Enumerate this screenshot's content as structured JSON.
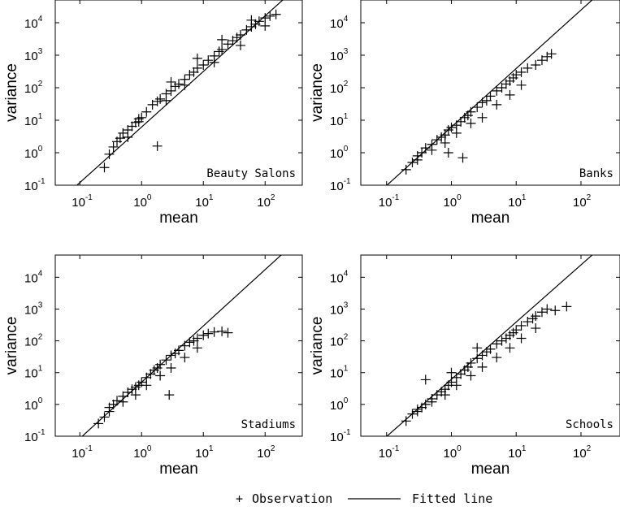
{
  "legend": {
    "observation_symbol": "+",
    "observation_label": "Observation",
    "fitted_label": "Fitted line"
  },
  "chart_data": [
    {
      "type": "scatter",
      "title": "Beauty Salons",
      "xlabel": "mean",
      "ylabel": "variance",
      "xscale": "log",
      "yscale": "log",
      "xlim": [
        0.04,
        400
      ],
      "ylim": [
        0.1,
        50000
      ],
      "xticks": [
        "10^-1",
        "10^0",
        "10^1",
        "10^2"
      ],
      "yticks": [
        "10^-1",
        "10^0",
        "10^1",
        "10^2",
        "10^3",
        "10^4"
      ],
      "title_position": "bottom-right",
      "fit": {
        "slope": 1.71,
        "intercept": 0.79
      },
      "series": [
        {
          "name": "Observation",
          "marker": "+",
          "x": [
            0.25,
            0.3,
            0.35,
            0.4,
            0.45,
            0.5,
            0.6,
            0.7,
            0.8,
            0.9,
            1.0,
            1.2,
            1.5,
            1.8,
            2.0,
            2.5,
            3.0,
            3.5,
            4.0,
            5.0,
            6.0,
            7.0,
            8.0,
            10.0,
            12.0,
            15.0,
            18.0,
            20.0,
            25.0,
            30.0,
            35.0,
            40.0,
            50.0,
            60.0,
            70.0,
            80.0,
            100.0,
            120.0,
            150.0,
            1.8,
            0.6,
            3.0,
            8.0,
            20.0,
            60.0,
            0.9,
            2.5,
            5.0,
            15.0,
            40.0,
            100.0
          ],
          "y": [
            0.35,
            0.9,
            1.5,
            2.2,
            2.8,
            4.0,
            5.0,
            6.5,
            8.5,
            11.0,
            12.0,
            18.0,
            30.0,
            38.0,
            45.0,
            65.0,
            80.0,
            110.0,
            130.0,
            180.0,
            250.0,
            300.0,
            400.0,
            500.0,
            700.0,
            950.0,
            1300.0,
            1500.0,
            2200.0,
            2800.0,
            3500.0,
            4200.0,
            6000.0,
            7500.0,
            9000.0,
            11000.0,
            14000.0,
            16000.0,
            18000.0,
            1.6,
            3.0,
            150.0,
            800.0,
            3000.0,
            12000.0,
            9.0,
            40.0,
            120.0,
            600.0,
            2000.0,
            8000.0
          ]
        }
      ]
    },
    {
      "type": "scatter",
      "title": "Banks",
      "xlabel": "mean",
      "ylabel": "variance",
      "xscale": "log",
      "yscale": "log",
      "xlim": [
        0.04,
        400
      ],
      "ylim": [
        0.1,
        50000
      ],
      "xticks": [
        "10^-1",
        "10^0",
        "10^1",
        "10^2"
      ],
      "yticks": [
        "10^-1",
        "10^0",
        "10^1",
        "10^2",
        "10^3",
        "10^4"
      ],
      "title_position": "bottom-right",
      "fit": {
        "slope": 1.8,
        "intercept": 0.79
      },
      "series": [
        {
          "name": "Observation",
          "marker": "+",
          "x": [
            0.2,
            0.25,
            0.3,
            0.35,
            0.4,
            0.5,
            0.6,
            0.7,
            0.8,
            0.9,
            1.0,
            1.2,
            1.4,
            1.6,
            1.8,
            2.0,
            2.5,
            3.0,
            3.5,
            4.0,
            5.0,
            6.0,
            7.0,
            8.0,
            9.0,
            10.0,
            12.0,
            15.0,
            20.0,
            25.0,
            30.0,
            35.0,
            0.3,
            0.5,
            0.8,
            1.2,
            2.0,
            3.0,
            5.0,
            8.0,
            12.0,
            1.5,
            0.9
          ],
          "y": [
            0.3,
            0.5,
            0.6,
            1.0,
            1.4,
            1.8,
            2.5,
            3.0,
            3.5,
            5.0,
            6.0,
            7.0,
            9.0,
            12.0,
            14.0,
            18.0,
            25.0,
            35.0,
            40.0,
            55.0,
            80.0,
            100.0,
            130.0,
            160.0,
            200.0,
            250.0,
            300.0,
            400.0,
            500.0,
            700.0,
            900.0,
            1100.0,
            0.8,
            1.2,
            2.0,
            4.0,
            8.0,
            12.0,
            30.0,
            60.0,
            120.0,
            0.7,
            1.0
          ]
        }
      ]
    },
    {
      "type": "scatter",
      "title": "Stadiums",
      "xlabel": "mean",
      "ylabel": "variance",
      "xscale": "log",
      "yscale": "log",
      "xlim": [
        0.04,
        400
      ],
      "ylim": [
        0.1,
        50000
      ],
      "xticks": [
        "10^-1",
        "10^0",
        "10^1",
        "10^2"
      ],
      "yticks": [
        "10^-1",
        "10^0",
        "10^1",
        "10^2",
        "10^3",
        "10^4"
      ],
      "title_position": "bottom-right",
      "fit": {
        "slope": 1.77,
        "intercept": 0.7
      },
      "series": [
        {
          "name": "Observation",
          "marker": "+",
          "x": [
            0.2,
            0.25,
            0.3,
            0.35,
            0.4,
            0.5,
            0.6,
            0.7,
            0.8,
            0.9,
            1.0,
            1.2,
            1.4,
            1.6,
            1.8,
            2.0,
            2.5,
            3.0,
            3.5,
            4.0,
            5.0,
            6.0,
            7.0,
            8.0,
            10.0,
            12.0,
            15.0,
            20.0,
            25.0,
            0.3,
            0.5,
            0.8,
            1.2,
            2.0,
            3.0,
            5.0,
            8.0,
            2.8
          ],
          "y": [
            0.25,
            0.4,
            0.8,
            1.0,
            1.3,
            1.8,
            2.4,
            3.0,
            3.5,
            4.0,
            5.0,
            7.0,
            9.0,
            12.0,
            14.0,
            18.0,
            25.0,
            35.0,
            40.0,
            50.0,
            70.0,
            90.0,
            100.0,
            120.0,
            150.0,
            170.0,
            190.0,
            200.0,
            180.0,
            0.6,
            1.2,
            2.0,
            4.0,
            8.0,
            14.0,
            30.0,
            60.0,
            2.0
          ]
        }
      ]
    },
    {
      "type": "scatter",
      "title": "Schools",
      "xlabel": "mean",
      "ylabel": "variance",
      "xscale": "log",
      "yscale": "log",
      "xlim": [
        0.04,
        400
      ],
      "ylim": [
        0.1,
        50000
      ],
      "xticks": [
        "10^-1",
        "10^0",
        "10^1",
        "10^2"
      ],
      "yticks": [
        "10^-1",
        "10^0",
        "10^1",
        "10^2",
        "10^3",
        "10^4"
      ],
      "title_position": "bottom-right",
      "fit": {
        "slope": 1.8,
        "intercept": 0.79
      },
      "series": [
        {
          "name": "Observation",
          "marker": "+",
          "x": [
            0.2,
            0.25,
            0.3,
            0.35,
            0.4,
            0.5,
            0.6,
            0.7,
            0.8,
            0.9,
            1.0,
            1.2,
            1.4,
            1.6,
            1.8,
            2.0,
            2.5,
            3.0,
            3.5,
            4.0,
            5.0,
            6.0,
            7.0,
            8.0,
            9.0,
            10.0,
            12.0,
            15.0,
            18.0,
            20.0,
            25.0,
            30.0,
            40.0,
            60.0,
            0.3,
            0.5,
            0.8,
            1.2,
            2.0,
            3.0,
            5.0,
            8.0,
            12.0,
            20.0,
            0.4,
            1.0,
            2.5
          ],
          "y": [
            0.3,
            0.5,
            0.6,
            0.8,
            1.0,
            1.5,
            2.0,
            2.5,
            3.0,
            4.0,
            5.0,
            7.0,
            9.0,
            12.0,
            15.0,
            20.0,
            28.0,
            35.0,
            45.0,
            55.0,
            80.0,
            100.0,
            120.0,
            150.0,
            180.0,
            220.0,
            300.0,
            400.0,
            500.0,
            600.0,
            800.0,
            1000.0,
            900.0,
            1200.0,
            0.7,
            1.2,
            2.0,
            4.0,
            8.0,
            15.0,
            30.0,
            60.0,
            120.0,
            250.0,
            6.0,
            10.0,
            60.0
          ]
        }
      ]
    }
  ]
}
